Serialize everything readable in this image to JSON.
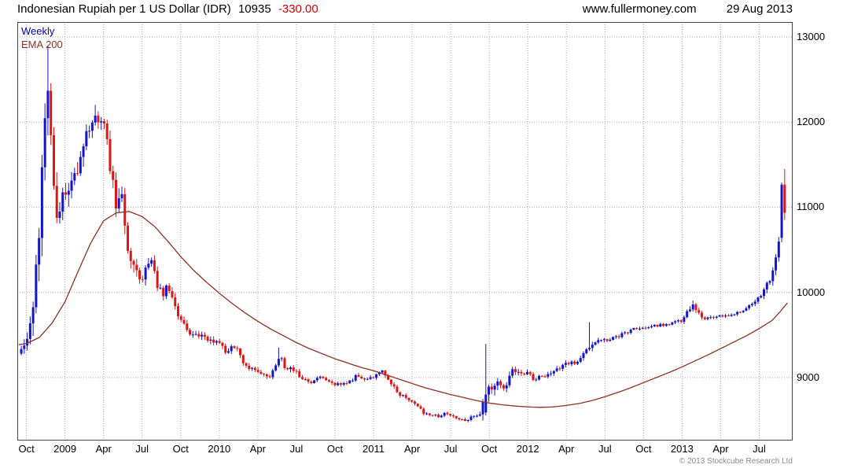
{
  "header": {
    "title": "Indonesian Rupiah per 1 US Dollar (IDR)",
    "last_price": "10935",
    "change": "-330.00",
    "website": "www.fullermoney.com",
    "date": "29 Aug 2013"
  },
  "legend": {
    "timeframe": "Weekly",
    "overlay": "EMA 200"
  },
  "footer": {
    "copyright": "© 2013 Stockcube Research Ltd"
  },
  "colors": {
    "up_candle": "#1414cc",
    "down_candle": "#e01414",
    "ema_line": "#8b3224",
    "grid": "#aaaaaa",
    "border": "#444444",
    "change_text": "#dd0000",
    "weekly_label": "#0000bb"
  },
  "chart_data": {
    "type": "candlestick",
    "instrument": "Indonesian Rupiah per 1 US Dollar (IDR)",
    "timeframe": "weekly",
    "period": "Oct 2008 - 29 Aug 2013",
    "last_week": {
      "open": 11265,
      "high": 11450,
      "low": 10850,
      "close": 10935,
      "change": -330
    },
    "all_time_high_on_chart": 12900,
    "low_on_chart": 8470,
    "x_axis": {
      "labels": [
        "Oct",
        "2009",
        "Apr",
        "Jul",
        "Oct",
        "2010",
        "Apr",
        "Jul",
        "Oct",
        "2011",
        "Apr",
        "Jul",
        "Oct",
        "2012",
        "Apr",
        "Jul",
        "Oct",
        "2013",
        "Apr",
        "Jul"
      ],
      "label_months": [
        0,
        3,
        6,
        9,
        12,
        15,
        18,
        21,
        24,
        27,
        30,
        33,
        36,
        39,
        42,
        45,
        48,
        51,
        54,
        57
      ],
      "month_range": [
        -0.71,
        59.6
      ],
      "month_zero": "Oct 2008"
    },
    "y_axis": {
      "ticks": [
        9000,
        10000,
        11000,
        12000,
        13000
      ],
      "range": [
        8260,
        13175
      ],
      "side": "right"
    },
    "anchor_format": [
      "months_since_oct_2008",
      "close",
      "weekly_volatility"
    ],
    "monthly_anchors": [
      [
        -0.4,
        9320,
        140
      ],
      [
        0,
        9380,
        170
      ],
      [
        0.5,
        9850,
        300
      ],
      [
        1,
        10800,
        420
      ],
      [
        1.4,
        11900,
        480
      ],
      [
        1.62,
        12500,
        430
      ],
      [
        1.85,
        12000,
        450
      ],
      [
        2.1,
        11350,
        400
      ],
      [
        2.4,
        10950,
        330
      ],
      [
        3,
        11150,
        280
      ],
      [
        3.7,
        11350,
        260
      ],
      [
        4.4,
        11700,
        240
      ],
      [
        5,
        12000,
        220
      ],
      [
        5.5,
        12050,
        200
      ],
      [
        6,
        11950,
        210
      ],
      [
        6.5,
        11500,
        280
      ],
      [
        7,
        10950,
        300
      ],
      [
        7.4,
        11100,
        240
      ],
      [
        8,
        10420,
        200
      ],
      [
        8.6,
        10230,
        160
      ],
      [
        9,
        10150,
        150
      ],
      [
        9.6,
        10420,
        150
      ],
      [
        10.1,
        10120,
        130
      ],
      [
        10.6,
        9980,
        120
      ],
      [
        11,
        10070,
        120
      ],
      [
        11.6,
        9830,
        110
      ],
      [
        12,
        9650,
        100
      ],
      [
        13,
        9490,
        90
      ],
      [
        14,
        9470,
        85
      ],
      [
        15,
        9400,
        85
      ],
      [
        15.5,
        9290,
        80
      ],
      [
        16.2,
        9370,
        80
      ],
      [
        17,
        9160,
        70
      ],
      [
        18,
        9060,
        60
      ],
      [
        19,
        9020,
        60
      ],
      [
        19.6,
        9240,
        110
      ],
      [
        20.2,
        9120,
        80
      ],
      [
        21,
        9060,
        60
      ],
      [
        21.6,
        8980,
        60
      ],
      [
        22.2,
        8950,
        55
      ],
      [
        22.7,
        9030,
        55
      ],
      [
        23.3,
        8970,
        50
      ],
      [
        24,
        8925,
        50
      ],
      [
        25,
        8945,
        50
      ],
      [
        25.6,
        9010,
        55
      ],
      [
        26.3,
        8995,
        50
      ],
      [
        27,
        8990,
        55
      ],
      [
        27.6,
        9080,
        60
      ],
      [
        28.3,
        8940,
        55
      ],
      [
        29,
        8810,
        50
      ],
      [
        30,
        8705,
        45
      ],
      [
        31,
        8575,
        45
      ],
      [
        32,
        8545,
        40
      ],
      [
        32.6,
        8590,
        40
      ],
      [
        33.3,
        8545,
        40
      ],
      [
        34,
        8495,
        40
      ],
      [
        34.6,
        8530,
        40
      ],
      [
        35.2,
        8565,
        45
      ],
      [
        35.8,
        8790,
        240
      ],
      [
        36.2,
        8890,
        150
      ],
      [
        36.7,
        8960,
        120
      ],
      [
        37.2,
        8860,
        100
      ],
      [
        37.7,
        9070,
        95
      ],
      [
        38.2,
        9040,
        80
      ],
      [
        39,
        9065,
        70
      ],
      [
        39.5,
        8985,
        70
      ],
      [
        40.2,
        9010,
        60
      ],
      [
        41,
        9085,
        60
      ],
      [
        42,
        9160,
        60
      ],
      [
        43,
        9195,
        60
      ],
      [
        43.6,
        9340,
        90
      ],
      [
        44.2,
        9420,
        70
      ],
      [
        45,
        9440,
        55
      ],
      [
        46,
        9485,
        50
      ],
      [
        47,
        9555,
        50
      ],
      [
        48,
        9590,
        45
      ],
      [
        49,
        9610,
        40
      ],
      [
        50,
        9625,
        40
      ],
      [
        51,
        9670,
        45
      ],
      [
        51.8,
        9845,
        85
      ],
      [
        52.4,
        9715,
        60
      ],
      [
        53,
        9690,
        45
      ],
      [
        54,
        9720,
        40
      ],
      [
        55,
        9745,
        40
      ],
      [
        56,
        9805,
        50
      ],
      [
        56.6,
        9880,
        55
      ],
      [
        57,
        9945,
        60
      ],
      [
        57.5,
        10050,
        80
      ],
      [
        58,
        10230,
        100
      ],
      [
        58.35,
        10430,
        120
      ],
      [
        58.6,
        10650,
        140
      ],
      [
        58.8,
        11265,
        180
      ],
      [
        59,
        10935,
        150
      ]
    ],
    "ema200_points": [
      [
        -0.6,
        9385
      ],
      [
        0,
        9400
      ],
      [
        1,
        9470
      ],
      [
        2,
        9640
      ],
      [
        3,
        9890
      ],
      [
        4,
        10240
      ],
      [
        5,
        10580
      ],
      [
        6,
        10840
      ],
      [
        7,
        10935
      ],
      [
        8,
        10950
      ],
      [
        9,
        10890
      ],
      [
        10,
        10770
      ],
      [
        11,
        10600
      ],
      [
        12,
        10420
      ],
      [
        13,
        10260
      ],
      [
        14,
        10120
      ],
      [
        15,
        9990
      ],
      [
        16,
        9870
      ],
      [
        17,
        9760
      ],
      [
        18,
        9660
      ],
      [
        19,
        9570
      ],
      [
        20,
        9490
      ],
      [
        21,
        9410
      ],
      [
        22,
        9340
      ],
      [
        23,
        9280
      ],
      [
        24,
        9220
      ],
      [
        25,
        9170
      ],
      [
        26,
        9120
      ],
      [
        27,
        9080
      ],
      [
        28,
        9030
      ],
      [
        29,
        8980
      ],
      [
        30,
        8930
      ],
      [
        31,
        8880
      ],
      [
        32,
        8840
      ],
      [
        33,
        8800
      ],
      [
        34,
        8765
      ],
      [
        35,
        8730
      ],
      [
        36,
        8700
      ],
      [
        37,
        8680
      ],
      [
        38,
        8665
      ],
      [
        39,
        8655
      ],
      [
        40,
        8650
      ],
      [
        41,
        8655
      ],
      [
        42,
        8672
      ],
      [
        43,
        8695
      ],
      [
        44,
        8730
      ],
      [
        45,
        8775
      ],
      [
        46,
        8825
      ],
      [
        47,
        8880
      ],
      [
        48,
        8940
      ],
      [
        49,
        9000
      ],
      [
        50,
        9060
      ],
      [
        51,
        9125
      ],
      [
        52,
        9195
      ],
      [
        53,
        9265
      ],
      [
        54,
        9340
      ],
      [
        55,
        9415
      ],
      [
        56,
        9490
      ],
      [
        57,
        9575
      ],
      [
        58,
        9670
      ],
      [
        58.6,
        9770
      ],
      [
        59.3,
        9895
      ]
    ],
    "week_overrides": [
      {
        "m": 1.67,
        "high": 12900
      },
      {
        "m": 5.4,
        "high": 12200
      },
      {
        "m": 19.6,
        "high": 9350
      },
      {
        "m": 35.8,
        "open": 8590,
        "high": 9395,
        "low": 8555,
        "close": 8800
      },
      {
        "m": 43.8,
        "high": 9650
      },
      {
        "m": 51.8,
        "high": 9905
      },
      {
        "m": 58.8,
        "open": 10640,
        "high": 11290,
        "low": 10590,
        "close": 11265
      },
      {
        "m": 59.0,
        "open": 11265,
        "high": 11450,
        "low": 10850,
        "close": 10935
      }
    ]
  }
}
